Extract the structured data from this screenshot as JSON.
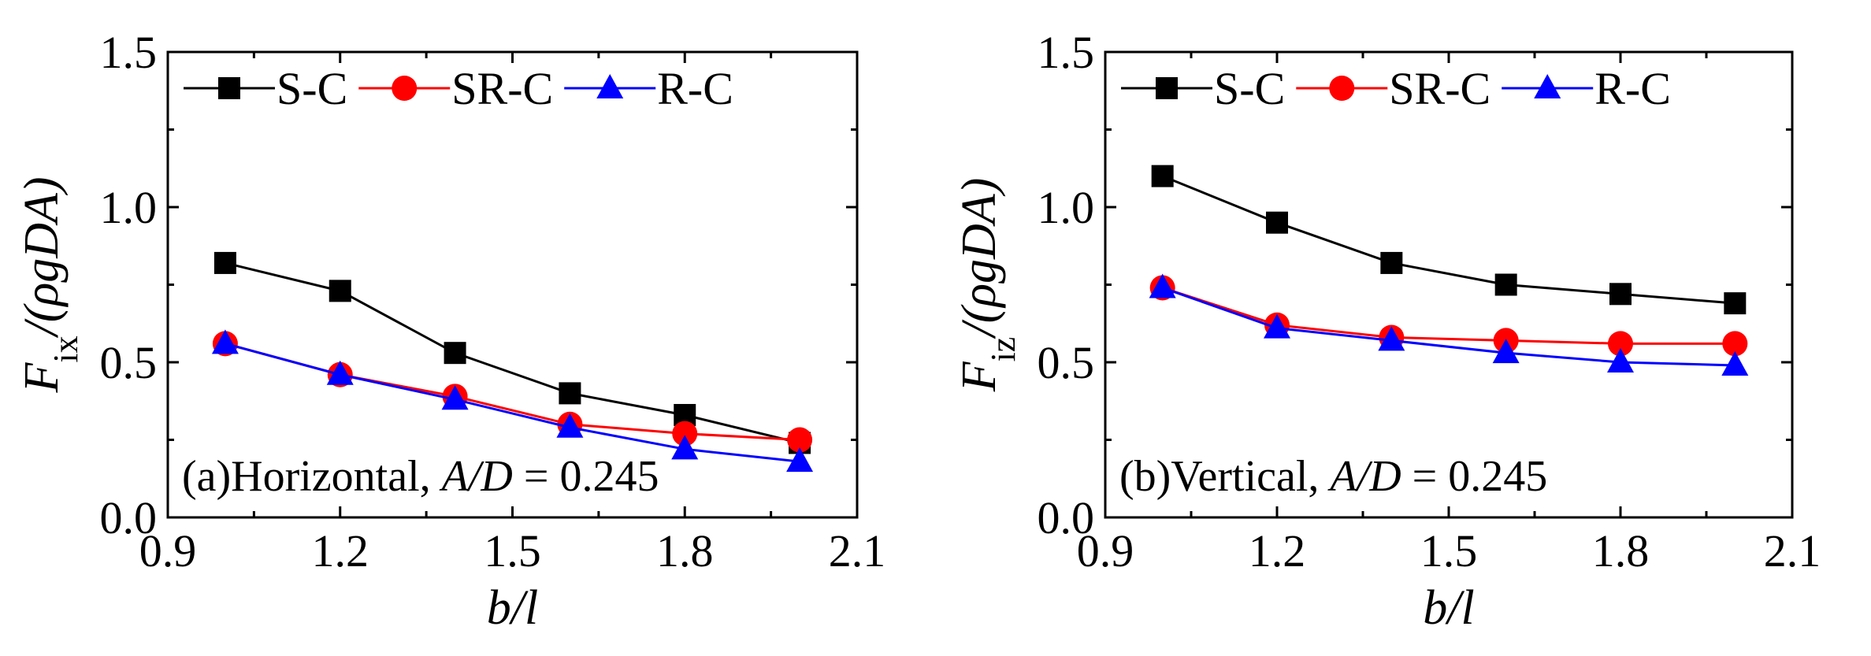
{
  "chart_data": [
    {
      "type": "line",
      "panel": "a",
      "annotation": {
        "prefix": "(a)Horizontal, ",
        "var": "A/D",
        "value": " = 0.245"
      },
      "xlabel": "b/l",
      "ylabel": {
        "main": "F",
        "sub": "ix",
        "tail": "/(ρgDA)"
      },
      "xlim": [
        0.9,
        2.1
      ],
      "ylim": [
        0.0,
        1.5
      ],
      "xticks": [
        "0.9",
        "1.2",
        "1.5",
        "1.8",
        "2.1"
      ],
      "yticks": [
        "0.0",
        "0.5",
        "1.0",
        "1.5"
      ],
      "x": [
        1.0,
        1.2,
        1.4,
        1.6,
        1.8,
        2.0
      ],
      "series": [
        {
          "name": "S-C",
          "color": "#000000",
          "marker": "square",
          "values": [
            0.82,
            0.73,
            0.53,
            0.4,
            0.33,
            0.24
          ]
        },
        {
          "name": "SR-C",
          "color": "#ff0000",
          "marker": "circle",
          "values": [
            0.56,
            0.46,
            0.39,
            0.3,
            0.27,
            0.25
          ]
        },
        {
          "name": "R-C",
          "color": "#0000ff",
          "marker": "triangle",
          "values": [
            0.56,
            0.46,
            0.38,
            0.29,
            0.22,
            0.18
          ]
        }
      ],
      "legend": "top"
    },
    {
      "type": "line",
      "panel": "b",
      "annotation": {
        "prefix": "(b)Vertical, ",
        "var": "A/D",
        "value": " = 0.245"
      },
      "xlabel": "b/l",
      "ylabel": {
        "main": "F",
        "sub": "iz",
        "tail": "/(ρgDA)"
      },
      "xlim": [
        0.9,
        2.1
      ],
      "ylim": [
        0.0,
        1.5
      ],
      "xticks": [
        "0.9",
        "1.2",
        "1.5",
        "1.8",
        "2.1"
      ],
      "yticks": [
        "0.0",
        "0.5",
        "1.0",
        "1.5"
      ],
      "x": [
        1.0,
        1.2,
        1.4,
        1.6,
        1.8,
        2.0
      ],
      "series": [
        {
          "name": "S-C",
          "color": "#000000",
          "marker": "square",
          "values": [
            1.1,
            0.95,
            0.82,
            0.75,
            0.72,
            0.69
          ]
        },
        {
          "name": "SR-C",
          "color": "#ff0000",
          "marker": "circle",
          "values": [
            0.74,
            0.62,
            0.58,
            0.57,
            0.56,
            0.56
          ]
        },
        {
          "name": "R-C",
          "color": "#0000ff",
          "marker": "triangle",
          "values": [
            0.74,
            0.61,
            0.57,
            0.53,
            0.5,
            0.49
          ]
        }
      ],
      "legend": "top"
    }
  ]
}
